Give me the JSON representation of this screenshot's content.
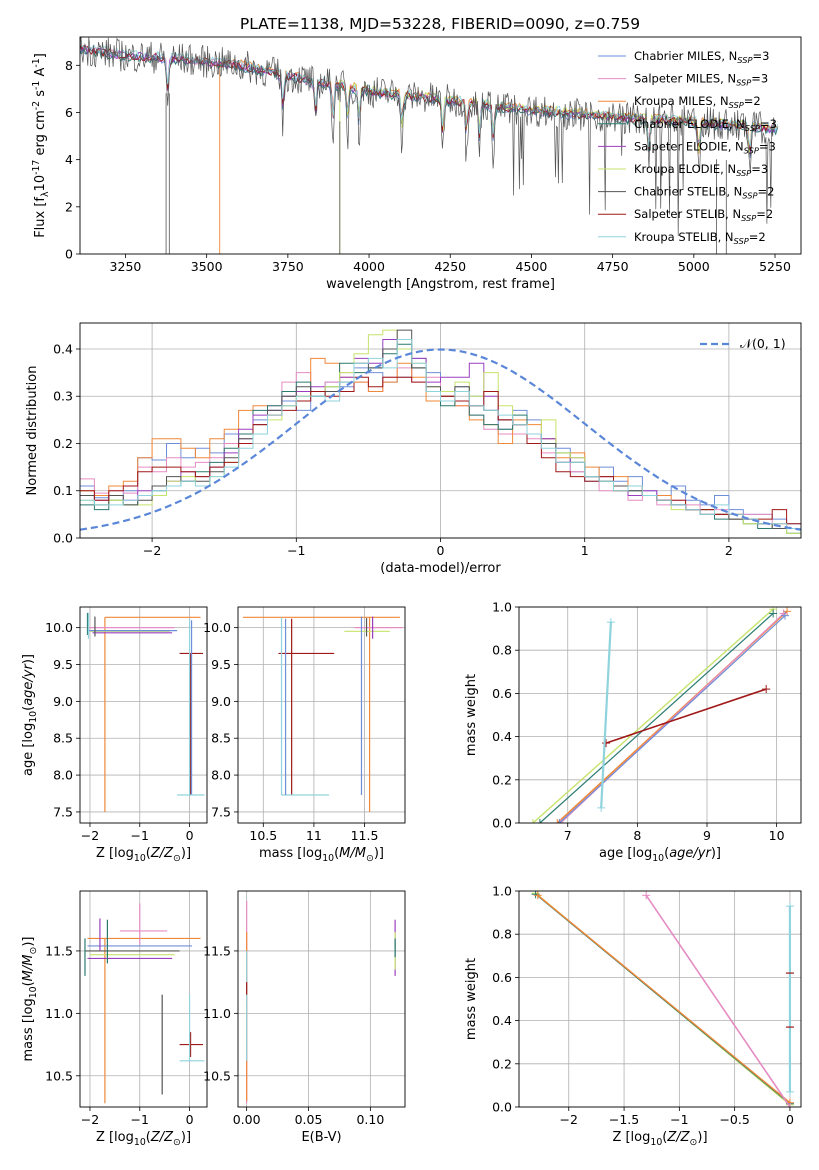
{
  "title": "PLATE=1138, MJD=53228, FIBERID=0090, z=0.759",
  "colors": {
    "chabrier_miles": "#6f8ed8",
    "salpeter_miles": "#e58cc3",
    "kroupa_miles": "#f0883a",
    "chabrier_elodie": "#2a7a6f",
    "salpeter_elodie": "#9b3fc0",
    "kroupa_elodie": "#c7e36b",
    "chabrier_stelib": "#555555",
    "salpeter_stelib": "#a01818",
    "kroupa_stelib": "#8fd3dd",
    "gauss": "#5b87d8",
    "grid": "#b0b0b0"
  },
  "chart_data": [
    {
      "id": "spectrum",
      "type": "line",
      "xlabel": "wavelength [Angstrom, rest frame]",
      "ylabel": "Flux [f$_\\lambda$10$^{-17}$ erg cm$^{-2}$ s$^{-1}$ A$^{-1}$]",
      "xlim": [
        3110,
        5330
      ],
      "ylim": [
        0,
        9.2
      ],
      "xticks": [
        3250,
        3500,
        3750,
        4000,
        4250,
        4500,
        4750,
        5000,
        5250
      ],
      "yticks": [
        0,
        2,
        4,
        6,
        8
      ],
      "grid": false,
      "legend_position": "top-right",
      "legend": [
        {
          "label": "Chabrier MILES, N",
          "sub": "SSP",
          "val": "=3"
        },
        {
          "label": "Salpeter MILES, N",
          "sub": "SSP",
          "val": "=3"
        },
        {
          "label": "Kroupa MILES, N",
          "sub": "SSP",
          "val": "=2"
        },
        {
          "label": "Chabrier ELODIE, N",
          "sub": "SSP",
          "val": "=3"
        },
        {
          "label": "Salpeter ELODIE, N",
          "sub": "SSP",
          "val": "=3"
        },
        {
          "label": "Kroupa ELODIE, N",
          "sub": "SSP",
          "val": "=3"
        },
        {
          "label": "Chabrier STELIB, N",
          "sub": "SSP",
          "val": "=2"
        },
        {
          "label": "Salpeter STELIB, N",
          "sub": "SSP",
          "val": "=2"
        },
        {
          "label": "Kroupa STELIB, N",
          "sub": "SSP",
          "val": "=2"
        }
      ],
      "continuum": [
        [
          3110,
          8.7
        ],
        [
          3250,
          8.4
        ],
        [
          3400,
          8.3
        ],
        [
          3600,
          8.0
        ],
        [
          3800,
          7.4
        ],
        [
          4000,
          6.9
        ],
        [
          4250,
          6.5
        ],
        [
          4500,
          6.1
        ],
        [
          4750,
          5.8
        ],
        [
          5000,
          5.6
        ],
        [
          5250,
          5.3
        ]
      ],
      "absorption_lines": [
        3380,
        3735,
        3835,
        3889,
        3934,
        3969,
        4102,
        4227,
        4300,
        4340,
        4383,
        4861,
        5015,
        5172
      ],
      "model_start": [
        3110,
        3110,
        3540,
        3110,
        3110,
        3910,
        3110,
        3110,
        3110
      ]
    },
    {
      "id": "residuals",
      "type": "bar",
      "xlabel": "(data-model)/error",
      "ylabel": "Normed distribution",
      "xlim": [
        -2.5,
        2.5
      ],
      "ylim": [
        0,
        0.455
      ],
      "xticks": [
        -2,
        -1,
        0,
        1,
        2
      ],
      "yticks": [
        0.0,
        0.1,
        0.2,
        0.3,
        0.4
      ],
      "grid": true,
      "legend_position": "top-right",
      "gauss_label": "𝒩(0, 1)",
      "bin_edges_start": -2.5,
      "bin_width": 0.1,
      "series": [
        {
          "values": [
            0.11,
            0.085,
            0.09,
            0.1,
            0.17,
            0.165,
            0.2,
            0.17,
            0.19,
            0.18,
            0.22,
            0.21,
            0.25,
            0.27,
            0.29,
            0.27,
            0.3,
            0.33,
            0.32,
            0.36,
            0.35,
            0.33,
            0.34,
            0.38,
            0.35,
            0.31,
            0.32,
            0.3,
            0.27,
            0.23,
            0.27,
            0.25,
            0.21,
            0.19,
            0.14,
            0.12,
            0.15,
            0.12,
            0.13,
            0.1,
            0.09,
            0.11,
            0.08,
            0.07,
            0.09,
            0.06,
            0.05,
            0.05,
            0.04,
            0.03
          ]
        },
        {
          "values": [
            0.125,
            0.095,
            0.1,
            0.095,
            0.15,
            0.14,
            0.17,
            0.15,
            0.16,
            0.17,
            0.2,
            0.21,
            0.24,
            0.28,
            0.33,
            0.35,
            0.3,
            0.33,
            0.35,
            0.33,
            0.31,
            0.34,
            0.36,
            0.33,
            0.34,
            0.3,
            0.28,
            0.26,
            0.23,
            0.22,
            0.22,
            0.21,
            0.18,
            0.16,
            0.14,
            0.13,
            0.1,
            0.11,
            0.08,
            0.09,
            0.07,
            0.08,
            0.07,
            0.05,
            0.06,
            0.04,
            0.05,
            0.05,
            0.03,
            0.02
          ]
        },
        {
          "values": [
            0.1,
            0.09,
            0.11,
            0.12,
            0.17,
            0.21,
            0.21,
            0.19,
            0.17,
            0.21,
            0.23,
            0.27,
            0.28,
            0.26,
            0.28,
            0.3,
            0.38,
            0.37,
            0.34,
            0.33,
            0.31,
            0.33,
            0.37,
            0.34,
            0.29,
            0.3,
            0.28,
            0.25,
            0.24,
            0.2,
            0.25,
            0.24,
            0.21,
            0.17,
            0.18,
            0.15,
            0.13,
            0.13,
            0.11,
            0.09,
            0.09,
            0.07,
            0.06,
            0.06,
            0.05,
            0.05,
            0.04,
            0.03,
            0.03,
            0.02
          ]
        },
        {
          "values": [
            0.07,
            0.06,
            0.08,
            0.07,
            0.09,
            0.1,
            0.11,
            0.12,
            0.14,
            0.16,
            0.19,
            0.22,
            0.27,
            0.28,
            0.31,
            0.33,
            0.3,
            0.32,
            0.37,
            0.35,
            0.36,
            0.39,
            0.41,
            0.36,
            0.31,
            0.28,
            0.29,
            0.26,
            0.24,
            0.23,
            0.26,
            0.22,
            0.2,
            0.18,
            0.16,
            0.13,
            0.12,
            0.11,
            0.1,
            0.09,
            0.08,
            0.07,
            0.06,
            0.06,
            0.04,
            0.04,
            0.03,
            0.02,
            0.02,
            0.01
          ]
        },
        {
          "values": [
            0.09,
            0.08,
            0.09,
            0.08,
            0.1,
            0.11,
            0.12,
            0.14,
            0.13,
            0.15,
            0.18,
            0.23,
            0.26,
            0.27,
            0.3,
            0.31,
            0.32,
            0.31,
            0.34,
            0.38,
            0.37,
            0.42,
            0.4,
            0.38,
            0.33,
            0.34,
            0.34,
            0.37,
            0.3,
            0.25,
            0.24,
            0.22,
            0.21,
            0.16,
            0.17,
            0.13,
            0.13,
            0.11,
            0.09,
            0.1,
            0.08,
            0.07,
            0.06,
            0.05,
            0.05,
            0.04,
            0.04,
            0.03,
            0.02,
            0.02
          ]
        },
        {
          "values": [
            0.08,
            0.07,
            0.08,
            0.07,
            0.07,
            0.09,
            0.12,
            0.13,
            0.11,
            0.13,
            0.16,
            0.2,
            0.22,
            0.25,
            0.28,
            0.3,
            0.31,
            0.32,
            0.35,
            0.39,
            0.43,
            0.44,
            0.4,
            0.37,
            0.32,
            0.31,
            0.33,
            0.3,
            0.35,
            0.28,
            0.24,
            0.22,
            0.25,
            0.18,
            0.17,
            0.13,
            0.12,
            0.1,
            0.11,
            0.09,
            0.08,
            0.06,
            0.06,
            0.05,
            0.05,
            0.04,
            0.03,
            0.03,
            0.02,
            0.01
          ]
        },
        {
          "values": [
            0.09,
            0.07,
            0.09,
            0.07,
            0.08,
            0.11,
            0.13,
            0.12,
            0.12,
            0.14,
            0.17,
            0.21,
            0.24,
            0.27,
            0.3,
            0.32,
            0.31,
            0.31,
            0.33,
            0.37,
            0.36,
            0.4,
            0.44,
            0.36,
            0.32,
            0.3,
            0.32,
            0.28,
            0.27,
            0.25,
            0.24,
            0.22,
            0.2,
            0.16,
            0.16,
            0.13,
            0.12,
            0.11,
            0.1,
            0.09,
            0.08,
            0.07,
            0.06,
            0.05,
            0.05,
            0.04,
            0.04,
            0.03,
            0.02,
            0.02
          ]
        },
        {
          "values": [
            0.1,
            0.08,
            0.1,
            0.11,
            0.14,
            0.15,
            0.15,
            0.14,
            0.13,
            0.15,
            0.16,
            0.2,
            0.24,
            0.26,
            0.27,
            0.29,
            0.31,
            0.3,
            0.31,
            0.34,
            0.32,
            0.34,
            0.34,
            0.33,
            0.31,
            0.3,
            0.29,
            0.28,
            0.31,
            0.25,
            0.24,
            0.2,
            0.17,
            0.14,
            0.13,
            0.12,
            0.13,
            0.1,
            0.11,
            0.09,
            0.08,
            0.08,
            0.06,
            0.06,
            0.05,
            0.05,
            0.04,
            0.04,
            0.06,
            0.03
          ]
        },
        {
          "values": [
            0.08,
            0.07,
            0.07,
            0.08,
            0.09,
            0.1,
            0.11,
            0.12,
            0.11,
            0.13,
            0.15,
            0.19,
            0.22,
            0.26,
            0.28,
            0.3,
            0.3,
            0.29,
            0.33,
            0.37,
            0.38,
            0.36,
            0.42,
            0.37,
            0.31,
            0.29,
            0.31,
            0.28,
            0.27,
            0.26,
            0.24,
            0.22,
            0.19,
            0.16,
            0.16,
            0.13,
            0.12,
            0.1,
            0.11,
            0.09,
            0.08,
            0.07,
            0.06,
            0.05,
            0.07,
            0.05,
            0.04,
            0.03,
            0.03,
            0.02
          ]
        }
      ]
    },
    {
      "id": "age_vs_z",
      "type": "scatter",
      "xlabel": "Z [log$_{10}$($Z/Z_\\odot$)]",
      "ylabel": "age  [log$_{10}$($age/yr$)]",
      "xlim": [
        -2.2,
        0.35
      ],
      "ylim": [
        7.35,
        10.28
      ],
      "xticks": [
        -2,
        -1,
        0
      ],
      "yticks": [
        7.5,
        8.0,
        8.5,
        9.0,
        9.5,
        10.0
      ],
      "grid": true
    },
    {
      "id": "age_vs_mass",
      "type": "scatter",
      "xlabel": "mass [log$_{10}$($M/M_\\odot$)]",
      "ylabel": "",
      "xlim": [
        10.25,
        11.9
      ],
      "ylim": [
        7.35,
        10.28
      ],
      "xticks": [
        10.5,
        11.0,
        11.5
      ],
      "yticks": [
        7.5,
        8.0,
        8.5,
        9.0,
        9.5,
        10.0
      ],
      "grid": true
    },
    {
      "id": "mw_vs_age",
      "type": "line",
      "xlabel": "age  [log$_{10}$($age/yr$)]",
      "ylabel": "mass weight",
      "xlim": [
        6.3,
        10.35
      ],
      "ylim": [
        0,
        1.0
      ],
      "xticks": [
        7,
        8,
        9,
        10
      ],
      "yticks": [
        0.0,
        0.2,
        0.4,
        0.6,
        0.8,
        1.0
      ],
      "grid": true
    },
    {
      "id": "mass_vs_z",
      "type": "scatter",
      "xlabel": "Z [log$_{10}$($Z/Z_\\odot$)]",
      "ylabel": "mass [log$_{10}$($M/M_\\odot$)]",
      "xlim": [
        -2.2,
        0.35
      ],
      "ylim": [
        10.25,
        11.98
      ],
      "xticks": [
        -2,
        -1,
        0
      ],
      "yticks": [
        10.5,
        11.0,
        11.5
      ],
      "grid": true
    },
    {
      "id": "mass_vs_ebv",
      "type": "scatter",
      "xlabel": "E(B-V)",
      "ylabel": "",
      "xlim": [
        -0.007,
        0.128
      ],
      "ylim": [
        10.25,
        11.98
      ],
      "xticks": [
        0.0,
        0.05,
        0.1
      ],
      "xticklabels": [
        "0.00",
        "0.05",
        "0.10"
      ],
      "yticks": [
        10.5,
        11.0,
        11.5
      ],
      "grid": true
    },
    {
      "id": "mw_vs_z",
      "type": "line",
      "xlabel": "Z [log$_{10}$($Z/Z_\\odot$)]",
      "ylabel": "mass weight",
      "xlim": [
        -2.45,
        0.1
      ],
      "ylim": [
        0,
        1.0
      ],
      "xticks": [
        -2.0,
        -1.5,
        -1.0,
        -0.5,
        0.0
      ],
      "yticks": [
        0.0,
        0.2,
        0.4,
        0.6,
        0.8,
        1.0
      ],
      "grid": true
    }
  ]
}
